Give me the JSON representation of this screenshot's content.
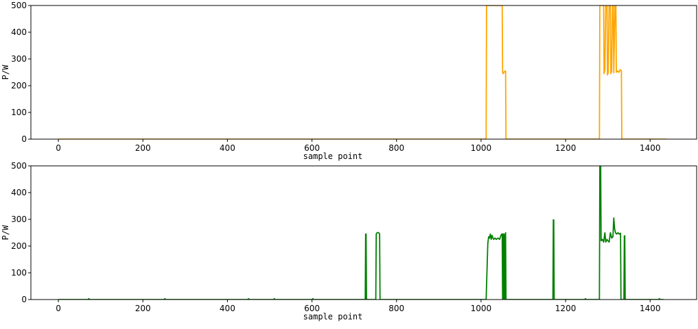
{
  "chart_data": [
    {
      "type": "line",
      "xlabel": "sample point",
      "ylabel": "P/W",
      "xlim": [
        -65,
        1510
      ],
      "ylim": [
        0,
        500
      ],
      "xticks": [
        0,
        200,
        400,
        600,
        800,
        1000,
        1200,
        1400
      ],
      "yticks": [
        0,
        100,
        200,
        300,
        400,
        500
      ],
      "grid": false,
      "series": [
        {
          "color": "#FFA500",
          "points": [
            [
              0,
              0
            ],
            [
              1012,
              0
            ],
            [
              1013,
              500
            ],
            [
              1015,
              500
            ],
            [
              1050,
              500
            ],
            [
              1051,
              250
            ],
            [
              1052,
              245
            ],
            [
              1055,
              252
            ],
            [
              1058,
              255
            ],
            [
              1059,
              0
            ],
            [
              1280,
              0
            ],
            [
              1281,
              500
            ],
            [
              1290,
              500
            ],
            [
              1291,
              245
            ],
            [
              1293,
              260
            ],
            [
              1295,
              500
            ],
            [
              1298,
              500
            ],
            [
              1299,
              240
            ],
            [
              1301,
              250
            ],
            [
              1303,
              500
            ],
            [
              1306,
              500
            ],
            [
              1307,
              245
            ],
            [
              1309,
              255
            ],
            [
              1311,
              500
            ],
            [
              1313,
              500
            ],
            [
              1314,
              248
            ],
            [
              1317,
              500
            ],
            [
              1319,
              500
            ],
            [
              1320,
              250
            ],
            [
              1323,
              255
            ],
            [
              1326,
              250
            ],
            [
              1329,
              260
            ],
            [
              1332,
              255
            ],
            [
              1333,
              0
            ],
            [
              1440,
              0
            ]
          ]
        }
      ]
    },
    {
      "type": "line",
      "xlabel": "sample point",
      "ylabel": "P/W",
      "xlim": [
        -65,
        1510
      ],
      "ylim": [
        0,
        500
      ],
      "xticks": [
        0,
        200,
        400,
        600,
        800,
        1000,
        1200,
        1400
      ],
      "yticks": [
        0,
        100,
        200,
        300,
        400,
        500
      ],
      "grid": false,
      "series": [
        {
          "color": "#008000",
          "points": [
            [
              0,
              0
            ],
            [
              70,
              0
            ],
            [
              72,
              3
            ],
            [
              74,
              0
            ],
            [
              250,
              0
            ],
            [
              252,
              3
            ],
            [
              254,
              0
            ],
            [
              448,
              0
            ],
            [
              450,
              3
            ],
            [
              452,
              0
            ],
            [
              509,
              0
            ],
            [
              511,
              3
            ],
            [
              513,
              0
            ],
            [
              600,
              0
            ],
            [
              602,
              3
            ],
            [
              604,
              0
            ],
            [
              726,
              0
            ],
            [
              727,
              245
            ],
            [
              728,
              245
            ],
            [
              729,
              0
            ],
            [
              751,
              0
            ],
            [
              752,
              245
            ],
            [
              754,
              250
            ],
            [
              758,
              250
            ],
            [
              760,
              245
            ],
            [
              761,
              0
            ],
            [
              1012,
              0
            ],
            [
              1016,
              210
            ],
            [
              1018,
              235
            ],
            [
              1020,
              230
            ],
            [
              1022,
              245
            ],
            [
              1024,
              225
            ],
            [
              1026,
              240
            ],
            [
              1028,
              230
            ],
            [
              1030,
              225
            ],
            [
              1033,
              230
            ],
            [
              1036,
              225
            ],
            [
              1040,
              230
            ],
            [
              1044,
              225
            ],
            [
              1047,
              240
            ],
            [
              1049,
              245
            ],
            [
              1050,
              245
            ],
            [
              1051,
              0
            ],
            [
              1052,
              245
            ],
            [
              1053,
              0
            ],
            [
              1054,
              245
            ],
            [
              1055,
              240
            ],
            [
              1056,
              0
            ],
            [
              1057,
              240
            ],
            [
              1058,
              250
            ],
            [
              1059,
              0
            ],
            [
              1170,
              0
            ],
            [
              1171,
              298
            ],
            [
              1172,
              298
            ],
            [
              1173,
              0
            ],
            [
              1245,
              0
            ],
            [
              1247,
              3
            ],
            [
              1249,
              0
            ],
            [
              1280,
              0
            ],
            [
              1281,
              500
            ],
            [
              1283,
              500
            ],
            [
              1284,
              220
            ],
            [
              1287,
              225
            ],
            [
              1290,
              215
            ],
            [
              1293,
              250
            ],
            [
              1295,
              215
            ],
            [
              1298,
              225
            ],
            [
              1300,
              220
            ],
            [
              1303,
              215
            ],
            [
              1306,
              250
            ],
            [
              1309,
              230
            ],
            [
              1312,
              235
            ],
            [
              1314,
              305
            ],
            [
              1316,
              265
            ],
            [
              1318,
              250
            ],
            [
              1321,
              245
            ],
            [
              1324,
              250
            ],
            [
              1327,
              245
            ],
            [
              1330,
              248
            ],
            [
              1331,
              0
            ],
            [
              1338,
              0
            ],
            [
              1339,
              238
            ],
            [
              1340,
              238
            ],
            [
              1341,
              0
            ],
            [
              1420,
              0
            ],
            [
              1422,
              3
            ],
            [
              1424,
              0
            ],
            [
              1432,
              0
            ]
          ]
        }
      ]
    }
  ]
}
